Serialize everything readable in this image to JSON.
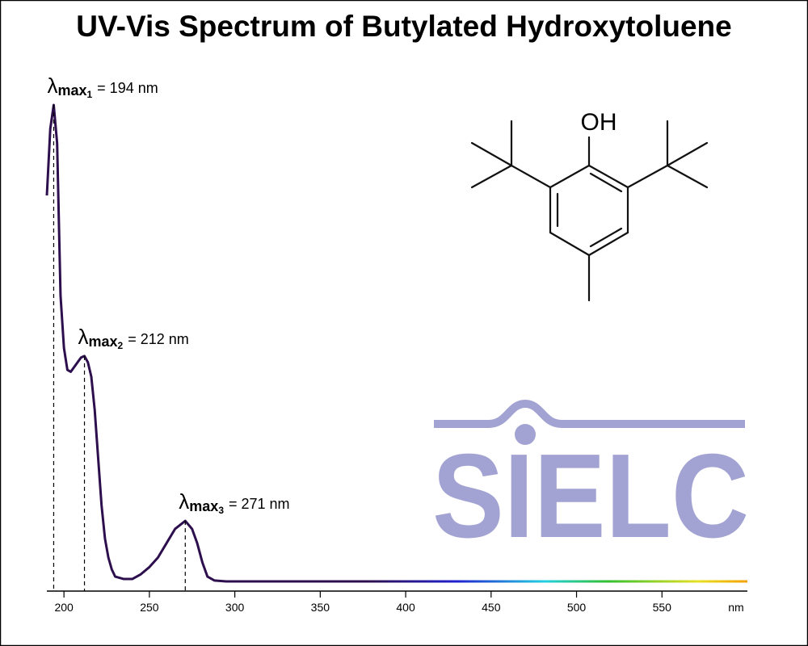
{
  "chart_data": {
    "type": "line",
    "title": "UV-Vis Spectrum of Butylated Hydroxytoluene",
    "xlabel": "nm",
    "x": [
      190,
      192,
      194,
      196,
      198,
      200,
      202,
      204,
      206,
      208,
      210,
      212,
      214,
      216,
      218,
      220,
      222,
      224,
      226,
      228,
      230,
      235,
      240,
      245,
      250,
      255,
      260,
      265,
      271,
      275,
      278,
      281,
      284,
      288,
      295,
      350,
      400,
      450,
      500,
      550,
      600
    ],
    "values": [
      0.81,
      0.95,
      1.0,
      0.92,
      0.6,
      0.49,
      0.444,
      0.44,
      0.45,
      0.46,
      0.47,
      0.473,
      0.46,
      0.43,
      0.36,
      0.26,
      0.16,
      0.09,
      0.05,
      0.025,
      0.01,
      0.005,
      0.005,
      0.015,
      0.03,
      0.05,
      0.08,
      0.11,
      0.127,
      0.11,
      0.08,
      0.04,
      0.01,
      0.002,
      0,
      0,
      0,
      0,
      0,
      0,
      0
    ],
    "color": "#2d0f4e",
    "xlim": [
      190,
      600
    ],
    "ylim": [
      0,
      1
    ],
    "xticks": [
      200,
      250,
      300,
      350,
      400,
      450,
      500,
      550
    ],
    "annotations": [
      {
        "symbol": "λ",
        "label": "max",
        "index": "1",
        "text": "= 194 nm",
        "x": 194,
        "y": 1.0
      },
      {
        "symbol": "λ",
        "label": "max",
        "index": "2",
        "text": "= 212 nm",
        "x": 212,
        "y": 0.473
      },
      {
        "symbol": "λ",
        "label": "max",
        "index": "3",
        "text": "= 271 nm",
        "x": 271,
        "y": 0.127
      }
    ]
  },
  "structure_label": "OH",
  "logo": "SIELC"
}
